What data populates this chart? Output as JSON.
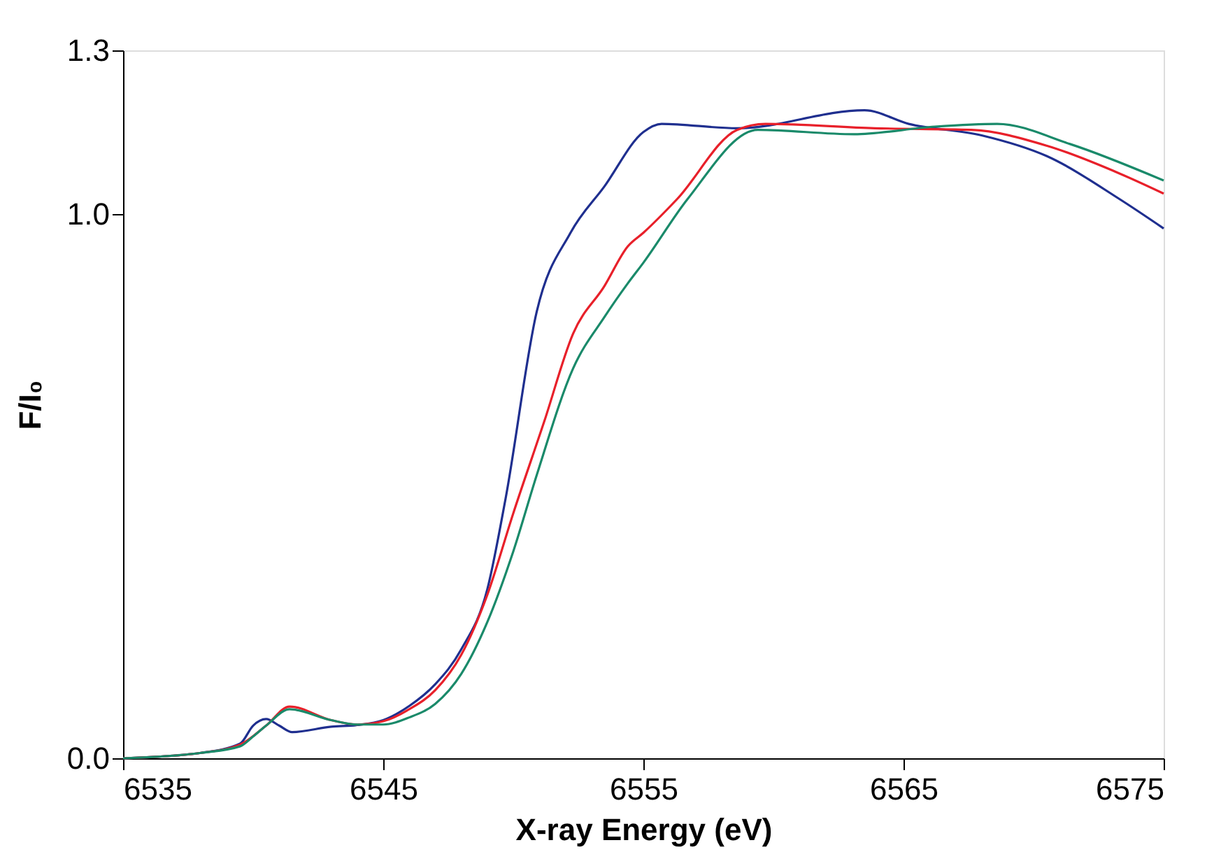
{
  "chart_data": {
    "type": "line",
    "xlabel": "X-ray Energy (eV)",
    "ylabel": "F/I₀",
    "xlim": [
      6535,
      6575
    ],
    "xticks": [
      6535,
      6545,
      6555,
      6565,
      6575
    ],
    "ylim": [
      0,
      1.3
    ],
    "yticks": [
      {
        "value": 0,
        "label": "0.0"
      },
      {
        "value": 1,
        "label": "1.0"
      },
      {
        "value": 1.3,
        "label": "1.3"
      }
    ],
    "grid": false,
    "marker": "none",
    "line_style": "solid",
    "series": [
      {
        "color": "#1f2f8f",
        "x": [
          6535,
          6538,
          6539.5,
          6540,
          6540.5,
          6541,
          6541.5,
          6543,
          6544,
          6545,
          6546,
          6547,
          6548,
          6549,
          6549.7,
          6550.9,
          6552.2,
          6553.5,
          6555,
          6555.7,
          6558.6,
          6563.5,
          6565.2,
          6568,
          6570.5,
          6573.3,
          6575
        ],
        "values": [
          0,
          0.01,
          0.027,
          0.06,
          0.072,
          0.06,
          0.048,
          0.058,
          0.061,
          0.07,
          0.096,
          0.136,
          0.2,
          0.31,
          0.476,
          0.82,
          0.965,
          1.05,
          1.15,
          1.165,
          1.157,
          1.19,
          1.165,
          1.144,
          1.106,
          1.027,
          0.973
        ]
      },
      {
        "color": "#e8202a",
        "x": [
          6535,
          6538,
          6539.5,
          6540.5,
          6541.4,
          6543,
          6544,
          6545,
          6546,
          6547,
          6548,
          6549,
          6550,
          6551.2,
          6552.3,
          6553.5,
          6554.4,
          6555,
          6556.3,
          6558.6,
          6559.7,
          6563.9,
          6567.6,
          6570.5,
          6573.3,
          6575
        ],
        "values": [
          0,
          0.01,
          0.025,
          0.06,
          0.095,
          0.07,
          0.062,
          0.068,
          0.09,
          0.125,
          0.19,
          0.3,
          0.45,
          0.62,
          0.78,
          0.867,
          0.94,
          0.965,
          1.027,
          1.154,
          1.165,
          1.157,
          1.154,
          1.125,
          1.074,
          1.037
        ]
      },
      {
        "color": "#1a8a6a",
        "x": [
          6535,
          6538,
          6539.5,
          6540,
          6540.5,
          6541.4,
          6543,
          6544,
          6545,
          6546,
          6547,
          6548,
          6549,
          6550,
          6550.9,
          6552.3,
          6553.5,
          6554.4,
          6555,
          6556.7,
          6559.4,
          6563.1,
          6566.2,
          6568.6,
          6571.4,
          6575
        ],
        "values": [
          0,
          0.01,
          0.022,
          0.04,
          0.06,
          0.09,
          0.07,
          0.062,
          0.062,
          0.075,
          0.1,
          0.155,
          0.25,
          0.38,
          0.52,
          0.716,
          0.81,
          0.872,
          0.91,
          1.027,
          1.154,
          1.146,
          1.16,
          1.165,
          1.128,
          1.061
        ]
      }
    ]
  }
}
